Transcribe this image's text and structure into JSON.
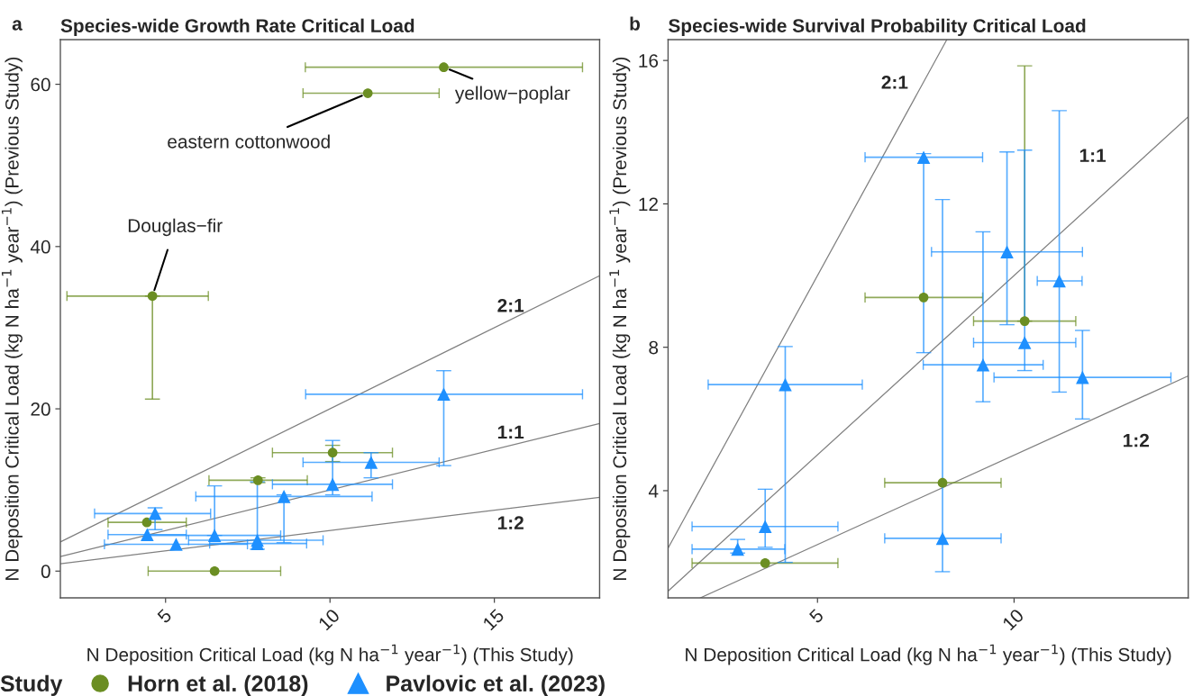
{
  "chart_data": [
    {
      "type": "scatter",
      "title": "Species-wide Growth Rate Critical Load",
      "xlabel": "N Deposition Critical Load (kg N ha$^{−1}$ year$^{−1}$) (This Study)",
      "ylabel": "N Deposition Critical Load (kg N ha$^{−1}$ year$^{−1}$) (Previous Study)",
      "legend_title": "Study",
      "legend": "bottom",
      "grid": false,
      "xlim": [
        1.8,
        18.2
      ],
      "xticks": [
        5,
        10,
        15
      ],
      "ylim": [
        -3.3,
        65.5
      ],
      "yticks": [
        0,
        20,
        40,
        60
      ],
      "annotations": [
        "a",
        {
          "text": "Douglas−fir",
          "x": 4.6,
          "y": 33.9
        },
        {
          "text": "eastern cottonwood",
          "x": 11.15,
          "y": 58.9
        },
        {
          "text": "yellow−poplar",
          "x": 13.46,
          "y": 62.1
        }
      ],
      "series": [
        {
          "name": "Horn et al. (2018)",
          "color": "#6b8e23",
          "marker": "circle",
          "x": [
            4.6,
            11.15,
            13.46,
            4.43,
            7.81,
            10.08,
            6.49
          ],
          "values": [
            33.9,
            58.9,
            62.1,
            6.0,
            11.2,
            14.6,
            0.0
          ],
          "errors": [
            [
              21.2,
              33.9
            ],
            null,
            null,
            null,
            [
              10.9,
              11.5
            ],
            [
              13.5,
              15.5
            ],
            null
          ],
          "xerrors": [
            [
              2.0,
              6.3
            ],
            [
              9.18,
              13.32
            ],
            [
              9.25,
              17.68
            ],
            [
              3.25,
              5.63
            ],
            [
              6.32,
              9.31
            ],
            [
              8.25,
              11.9
            ],
            [
              4.47,
              8.5
            ]
          ]
        },
        {
          "name": "Pavlovic et al. (2023)",
          "color": "#1e90ff",
          "marker": "triangle",
          "x": [
            13.46,
            11.25,
            10.08,
            8.6,
            7.79,
            7.79,
            4.68,
            4.44,
            6.49,
            5.32
          ],
          "values": [
            21.8,
            13.4,
            10.7,
            9.2,
            3.8,
            3.4,
            7.1,
            4.5,
            4.4,
            3.3
          ],
          "errors": [
            [
              13.0,
              24.7
            ],
            [
              11.5,
              14.6
            ],
            [
              9.4,
              16.1
            ],
            [
              3.5,
              9.4
            ],
            null,
            [
              2.7,
              11.0
            ],
            [
              5.1,
              7.8
            ],
            null,
            [
              4.4,
              10.5
            ],
            null
          ],
          "xerrors": [
            [
              9.26,
              17.68
            ],
            [
              9.18,
              13.32
            ],
            [
              8.25,
              11.9
            ],
            [
              5.92,
              11.28
            ],
            [
              5.7,
              9.79
            ],
            [
              6.34,
              9.29
            ],
            [
              2.84,
              6.37
            ],
            [
              3.25,
              5.63
            ],
            [
              4.47,
              8.5
            ],
            [
              3.14,
              7.49
            ]
          ]
        },
        {
          "type": "line",
          "name": "2:1",
          "color": "#808080",
          "x": [
            1.8,
            18.2
          ],
          "values": [
            3.6,
            36.4
          ]
        },
        {
          "type": "line",
          "name": "1:1",
          "color": "#808080",
          "x": [
            1.8,
            18.2
          ],
          "values": [
            1.8,
            18.2
          ]
        },
        {
          "type": "line",
          "name": "1:2",
          "color": "#808080",
          "x": [
            1.8,
            18.2
          ],
          "values": [
            0.9,
            9.1
          ]
        }
      ]
    },
    {
      "type": "scatter",
      "title": "Species-wide Survival Probability Critical Load",
      "xlabel": "N Deposition Critical Load (kg N ha$^{−1}$ year$^{−1}$) (This Study)",
      "ylabel": "N Deposition Critical Load (kg N ha$^{−1}$ year$^{−1}$) (Previous Study)",
      "grid": false,
      "xlim": [
        1.2,
        14.43
      ],
      "xticks": [
        5,
        10
      ],
      "ylim": [
        1.01,
        16.58
      ],
      "yticks": [
        4,
        8,
        12,
        16
      ],
      "annotations": [
        "b"
      ],
      "series": [
        {
          "color": "#6b8e23",
          "marker": "circle",
          "x": [
            7.7,
            10.27,
            8.18,
            3.67
          ],
          "values": [
            9.39,
            8.73,
            4.22,
            1.98
          ],
          "errors": [
            null,
            [
              8.73,
              15.85
            ],
            null,
            null
          ],
          "xerrors": [
            [
              6.21,
              9.2
            ],
            [
              8.97,
              11.57
            ],
            [
              6.71,
              9.67
            ],
            [
              1.81,
              5.52
            ]
          ]
        },
        {
          "color": "#1e90ff",
          "marker": "triangle",
          "x": [
            7.7,
            9.82,
            11.15,
            10.27,
            9.21,
            11.74,
            4.18,
            3.67,
            2.97,
            8.18
          ],
          "values": [
            13.3,
            10.66,
            9.85,
            8.13,
            7.51,
            7.16,
            6.96,
            3.0,
            2.37,
            2.67
          ],
          "errors": [
            [
              7.85,
              13.4
            ],
            [
              8.63,
              13.45
            ],
            [
              6.75,
              14.6
            ],
            [
              7.35,
              13.5
            ],
            [
              6.48,
              11.22
            ],
            [
              6.0,
              8.47
            ],
            [
              2.0,
              8.02
            ],
            [
              2.42,
              4.04
            ],
            [
              2.26,
              2.64
            ],
            [
              1.74,
              12.12
            ]
          ],
          "xerrors": [
            [
              6.21,
              9.2
            ],
            [
              7.9,
              11.74
            ],
            [
              10.59,
              11.73
            ],
            [
              8.97,
              11.57
            ],
            [
              7.69,
              10.74
            ],
            [
              9.49,
              13.99
            ],
            [
              2.22,
              6.14
            ],
            [
              1.81,
              5.52
            ],
            [
              1.81,
              4.17
            ],
            [
              6.71,
              9.67
            ]
          ]
        },
        {
          "type": "line",
          "name": "2:1",
          "color": "#808080",
          "x": [
            1.2,
            8.29
          ],
          "values": [
            2.4,
            16.58
          ]
        },
        {
          "type": "line",
          "name": "1:1",
          "color": "#808080",
          "x": [
            1.2,
            14.43
          ],
          "values": [
            1.2,
            14.43
          ]
        },
        {
          "type": "line",
          "name": "1:2",
          "color": "#808080",
          "x": [
            2.02,
            14.43
          ],
          "values": [
            1.01,
            7.2
          ]
        }
      ]
    }
  ]
}
